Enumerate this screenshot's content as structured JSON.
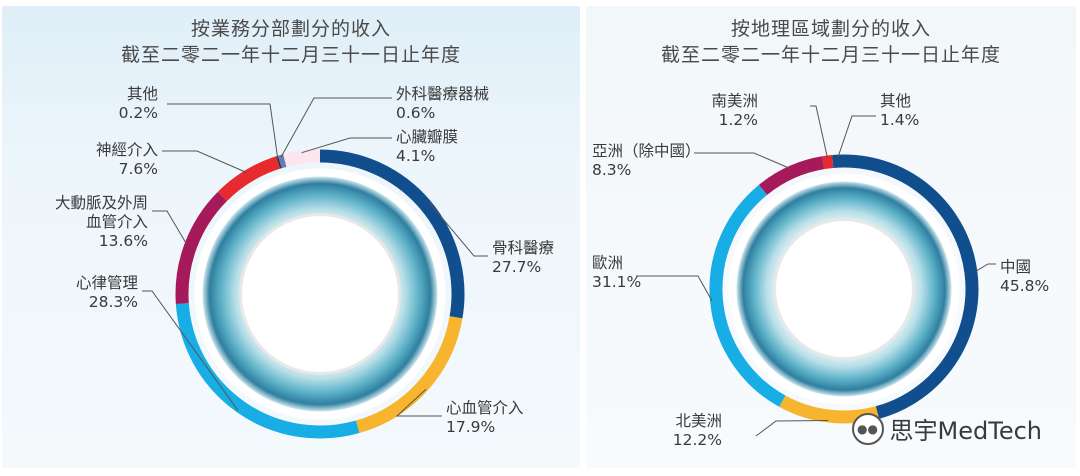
{
  "chart_data": [
    {
      "type": "pie",
      "donut": true,
      "title": "按業務分部劃分的收入",
      "subtitle": "截至二零二一年十二月三十一日止年度",
      "categories": [
        "骨科醫療",
        "心血管介入",
        "心律管理",
        "大動脈及外周血管介入",
        "神經介入",
        "其他",
        "外科醫療器械",
        "心臟瓣膜"
      ],
      "label_lines": [
        [
          "骨科醫療"
        ],
        [
          "心血管介入"
        ],
        [
          "心律管理"
        ],
        [
          "大動脈及外周",
          "血管介入"
        ],
        [
          "神經介入"
        ],
        [
          "其他"
        ],
        [
          "外科醫療器械"
        ],
        [
          "心臟瓣膜"
        ]
      ],
      "values": [
        27.7,
        17.9,
        28.3,
        13.6,
        7.6,
        0.2,
        0.6,
        4.1
      ],
      "value_labels": [
        "27.7%",
        "17.9%",
        "28.3%",
        "13.6%",
        "7.6%",
        "0.2%",
        "0.6%",
        "4.1%"
      ],
      "colors": [
        "#114e8e",
        "#f7b52f",
        "#17aee6",
        "#a6195a",
        "#e62a2e",
        "#26324c",
        "#6879ae",
        "#fbe5ef"
      ],
      "legend_position": "callout"
    },
    {
      "type": "pie",
      "donut": true,
      "title": "按地理區域劃分的收入",
      "subtitle": "截至二零二一年十二月三十一日止年度",
      "categories": [
        "中國",
        "北美洲",
        "歐洲",
        "亞洲（除中國）",
        "南美洲",
        "其他"
      ],
      "label_lines": [
        [
          "中國"
        ],
        [
          "北美洲"
        ],
        [
          "歐洲"
        ],
        [
          "亞洲（除中國）"
        ],
        [
          "南美洲"
        ],
        [
          "其他"
        ]
      ],
      "values": [
        45.8,
        12.2,
        31.1,
        8.3,
        1.2,
        1.4
      ],
      "value_labels": [
        "45.8%",
        "12.2%",
        "31.1%",
        "8.3%",
        "1.2%",
        "1.4%"
      ],
      "colors": [
        "#114e8e",
        "#f7b52f",
        "#17aee6",
        "#a6195a",
        "#e62a2e",
        "#114e8e"
      ],
      "legend_position": "callout"
    }
  ],
  "watermark": {
    "text": "思宇MedTech",
    "icon": "wechat-icon"
  }
}
